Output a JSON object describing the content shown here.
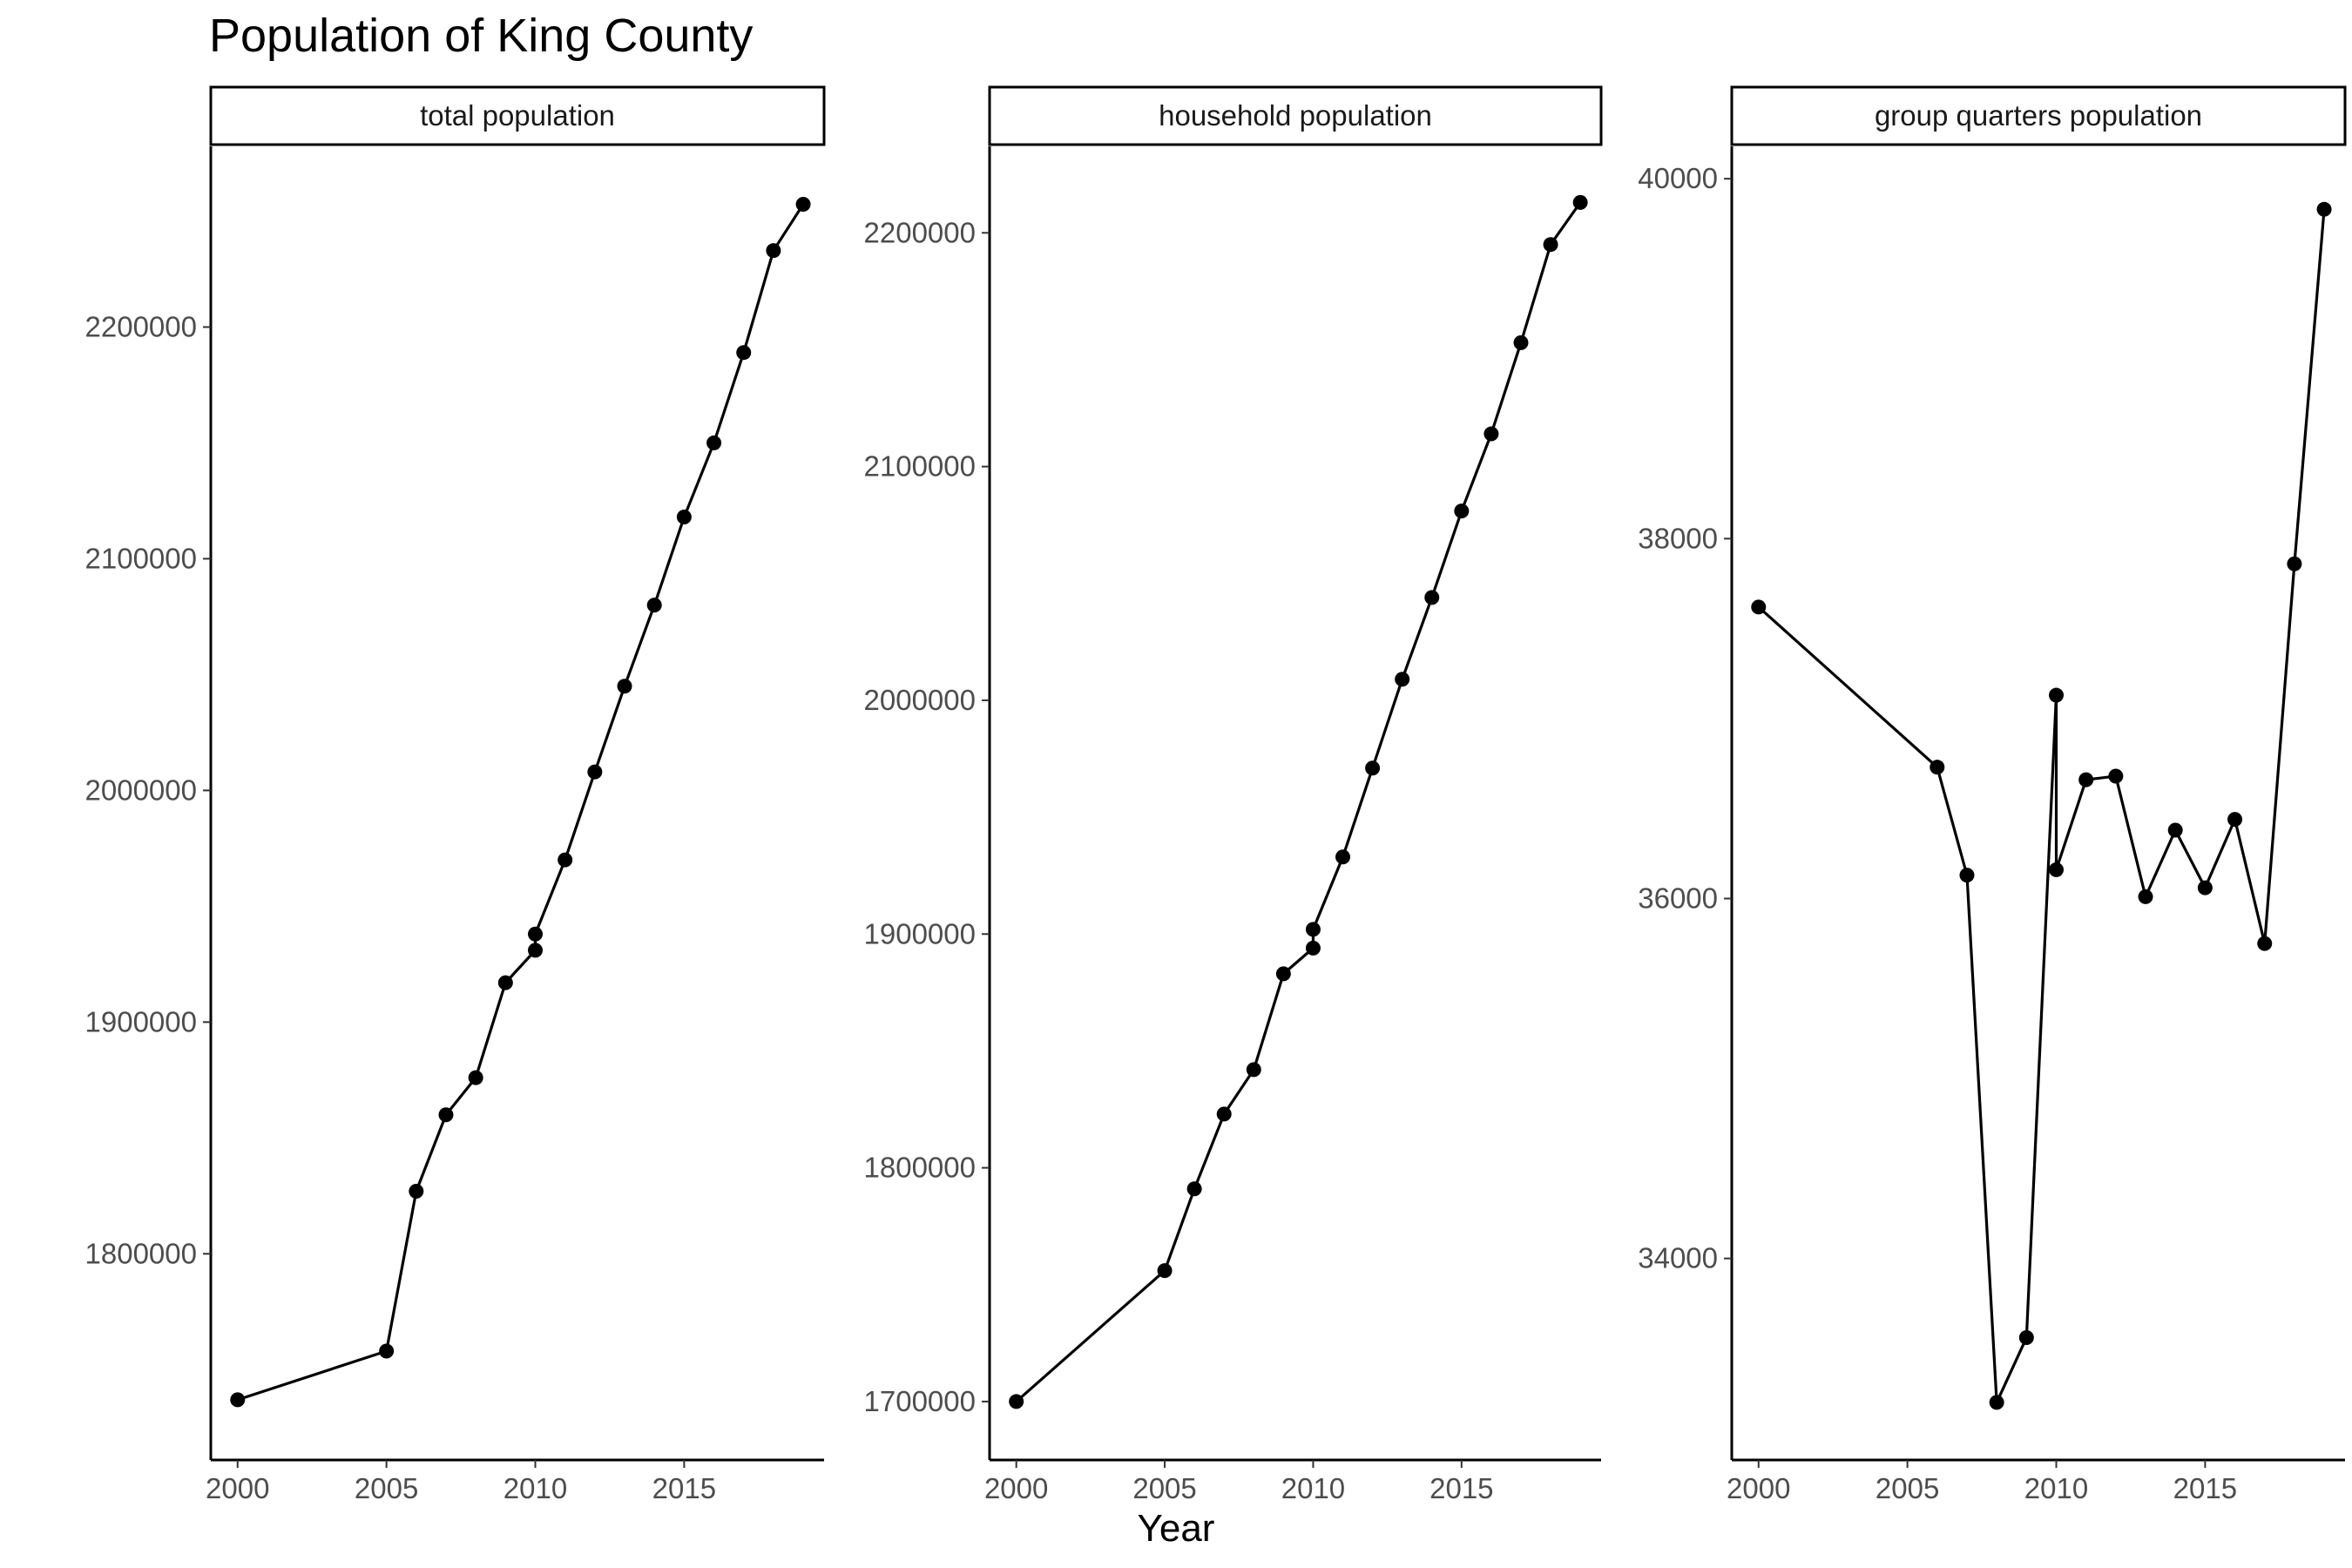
{
  "title": "Population of King County",
  "x_axis_title": "Year",
  "chart_data": {
    "type": "line",
    "title": "Population of King County",
    "xlabel": "Year",
    "ylabel": "",
    "facet_scales": "free_y",
    "grid": false,
    "legend": "none",
    "marker": "point",
    "line_color": "#000000",
    "panels": [
      {
        "strip_label": "total population",
        "xlim": [
          1999.1,
          2019.7
        ],
        "ylim": [
          1711000,
          2278000
        ],
        "x_ticks": [
          2000,
          2005,
          2010,
          2015
        ],
        "y_ticks": [
          1800000,
          1900000,
          2000000,
          2100000,
          2200000
        ],
        "series": [
          {
            "x": [
              2000,
              2005,
              2006,
              2007,
              2008,
              2009,
              2010,
              2010,
              2011,
              2012,
              2013,
              2014,
              2015,
              2016,
              2017,
              2018,
              2019
            ],
            "y": [
              1737000,
              1758000,
              1827000,
              1860000,
              1876000,
              1917000,
              1931000,
              1938000,
              1970000,
              2008000,
              2045000,
              2080000,
              2118000,
              2150000,
              2189000,
              2233000,
              2253000
            ],
            "connect": [
              true,
              true,
              true,
              true,
              true,
              true,
              true,
              true,
              true,
              true,
              true,
              true,
              true,
              true,
              true,
              true,
              true
            ]
          }
        ]
      },
      {
        "strip_label": "household population",
        "xlim": [
          1999.1,
          2019.7
        ],
        "ylim": [
          1675000,
          2237000
        ],
        "x_ticks": [
          2000,
          2005,
          2010,
          2015
        ],
        "y_ticks": [
          1700000,
          1800000,
          1900000,
          2000000,
          2100000,
          2200000
        ],
        "series": [
          {
            "x": [
              2000,
              2005,
              2006,
              2007,
              2008,
              2009,
              2010,
              2010,
              2011,
              2012,
              2013,
              2014,
              2015,
              2016,
              2017,
              2018,
              2019
            ],
            "y": [
              1700000,
              1756000,
              1791000,
              1823000,
              1842000,
              1883000,
              1894000,
              1902000,
              1933000,
              1971000,
              2009000,
              2044000,
              2081000,
              2114000,
              2153000,
              2195000,
              2213000
            ],
            "connect": [
              true,
              true,
              true,
              true,
              true,
              true,
              true,
              true,
              true,
              true,
              true,
              true,
              true,
              true,
              true,
              true,
              true
            ]
          }
        ]
      },
      {
        "strip_label": "group quarters population",
        "xlim": [
          1999.1,
          2019.7
        ],
        "ylim": [
          32880,
          40180
        ],
        "x_ticks": [
          2000,
          2005,
          2010,
          2015
        ],
        "y_ticks": [
          34000,
          36000,
          38000,
          40000
        ],
        "series": [
          {
            "x": [
              2000,
              2006,
              2007,
              2008,
              2009,
              2010,
              2010,
              2011,
              2012,
              2013,
              2014,
              2015,
              2016,
              2017,
              2018,
              2019
            ],
            "y": [
              37620,
              36730,
              36130,
              33200,
              33560,
              37130,
              36160,
              36660,
              36680,
              36010,
              36380,
              36060,
              36440,
              35750,
              37860,
              39830
            ],
            "connect": [
              false,
              true,
              true,
              true,
              true,
              true,
              true,
              true,
              true,
              true,
              true,
              true,
              true,
              true,
              true,
              true
            ]
          }
        ]
      }
    ]
  }
}
